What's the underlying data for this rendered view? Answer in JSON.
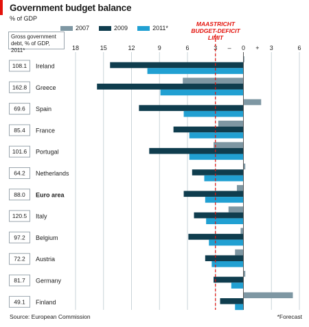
{
  "header": {
    "title": "Government budget balance",
    "subtitle": "% of GDP"
  },
  "legend_note": "Gross government debt, % of GDP, 2011*",
  "limit_label_line1": "MAASTRICHT",
  "limit_label_line2": "BUDGET-DEFICIT LIMIT",
  "footer": {
    "source": "Source: European Commission",
    "note": "*Forecast"
  },
  "colors": {
    "s2007": "#7e97a3",
    "s2009": "#0f3d4e",
    "s2011": "#21a0d2",
    "limit": "#e3120b",
    "grid": "#c9d3d8"
  },
  "chart_data": {
    "type": "bar",
    "orientation": "horizontal",
    "title": "Government budget balance",
    "subtitle": "% of GDP",
    "xlim": [
      -18,
      6
    ],
    "x_ticks": [
      -18,
      -15,
      -12,
      -9,
      -6,
      -3,
      0,
      3,
      6
    ],
    "x_tick_labels": [
      "18",
      "15",
      "12",
      "9",
      "6",
      "3",
      "0",
      "3",
      "6"
    ],
    "sign_labels": {
      "minus": "–",
      "plus": "+"
    },
    "reference_line": {
      "value": -3,
      "label": "Maastricht budget-deficit limit"
    },
    "legend_position": "top",
    "categories": [
      "Ireland",
      "Greece",
      "Spain",
      "France",
      "Portugal",
      "Netherlands",
      "Euro area",
      "Italy",
      "Belgium",
      "Austria",
      "Germany",
      "Finland"
    ],
    "bold_categories": [
      "Euro area"
    ],
    "debt_2011": [
      "108.1",
      "162.8",
      "69.6",
      "85.4",
      "101.6",
      "64.2",
      "88.0",
      "120.5",
      "97.2",
      "72.2",
      "81.7",
      "49.1"
    ],
    "series": [
      {
        "name": "2007",
        "values": [
          0.1,
          -6.5,
          1.9,
          -2.7,
          -3.2,
          0.2,
          -0.7,
          -1.6,
          -0.3,
          -0.9,
          0.2,
          5.3
        ]
      },
      {
        "name": "2009",
        "values": [
          -14.3,
          -15.7,
          -11.2,
          -7.5,
          -10.1,
          -5.5,
          -6.4,
          -5.3,
          -5.9,
          -4.1,
          -3.2,
          -2.5
        ]
      },
      {
        "name": "2011*",
        "values": [
          -10.3,
          -8.9,
          -6.4,
          -5.8,
          -5.8,
          -4.2,
          -4.1,
          -4.0,
          -3.7,
          -3.4,
          -1.3,
          -0.9
        ]
      }
    ]
  }
}
